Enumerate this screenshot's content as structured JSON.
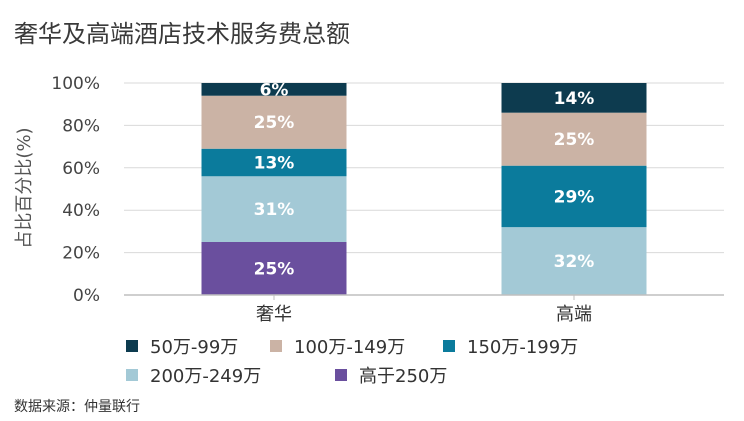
{
  "title": "奢华及高端酒店技术服务费总额",
  "source": "数据来源：仲量联行",
  "chart_data": {
    "type": "bar",
    "stacked": true,
    "categories": [
      "奢华",
      "高端"
    ],
    "ylabel": "占比百分比(%)",
    "ylim": [
      0,
      100
    ],
    "yticks": [
      "0%",
      "20%",
      "40%",
      "60%",
      "80%",
      "100%"
    ],
    "grid": true,
    "legend_position": "bottom",
    "series": [
      {
        "name": "高于250万",
        "color": "#6a4f9e",
        "values": [
          25,
          0
        ],
        "labels": [
          "25%",
          ""
        ]
      },
      {
        "name": "200万-249万",
        "color": "#a3c9d6",
        "values": [
          31,
          32
        ],
        "labels": [
          "31%",
          "32%"
        ]
      },
      {
        "name": "150万-199万",
        "color": "#0b7b9c",
        "values": [
          13,
          29
        ],
        "labels": [
          "13%",
          "29%"
        ]
      },
      {
        "name": "100万-149万",
        "color": "#cbb3a5",
        "values": [
          25,
          25
        ],
        "labels": [
          "25%",
          "25%"
        ]
      },
      {
        "name": "50万-99万",
        "color": "#0d3b4f",
        "values": [
          6,
          14
        ],
        "labels": [
          "6%",
          "14%"
        ]
      }
    ],
    "legend_order": [
      "50万-99万",
      "100万-149万",
      "150万-199万",
      "200万-249万",
      "高于250万"
    ]
  }
}
